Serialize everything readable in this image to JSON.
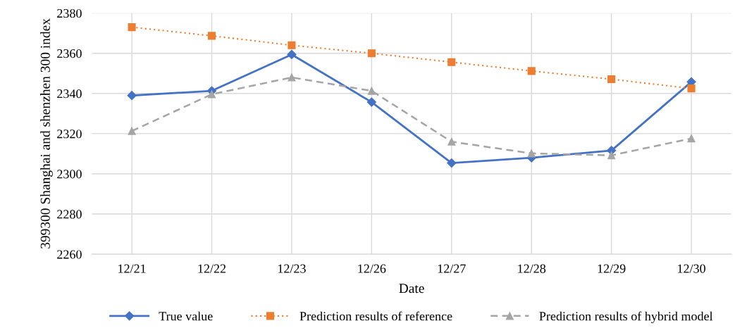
{
  "chart_data": {
    "type": "line",
    "xlabel": "Date",
    "ylabel": "399300 Shanghai and shenzhen 300 index",
    "categories": [
      "12/21",
      "12/22",
      "12/23",
      "12/26",
      "12/27",
      "12/28",
      "12/29",
      "12/30"
    ],
    "series": [
      {
        "name": "True value",
        "color": "#4472c4",
        "marker": "diamond",
        "line_style": "solid",
        "values": [
          2339,
          2341.3,
          2359.4,
          2335.7,
          2305.4,
          2308,
          2311.6,
          2345.8
        ]
      },
      {
        "name": "Prediction results of reference",
        "color": "#ed7d31",
        "marker": "square",
        "line_style": "dotted",
        "values": [
          2373,
          2368.7,
          2364,
          2360,
          2355.6,
          2351.2,
          2347.1,
          2342.5
        ]
      },
      {
        "name": "Prediction results of hybrid model",
        "color": "#a5a5a5",
        "marker": "triangle",
        "line_style": "dashed",
        "values": [
          2321.3,
          2339.6,
          2348,
          2341.3,
          2316,
          2310.2,
          2309.2,
          2317.6
        ]
      }
    ],
    "ylim": [
      2260,
      2380
    ],
    "yticks": [
      2260,
      2280,
      2300,
      2320,
      2340,
      2360,
      2380
    ],
    "grid": true,
    "legend": "bottom"
  }
}
